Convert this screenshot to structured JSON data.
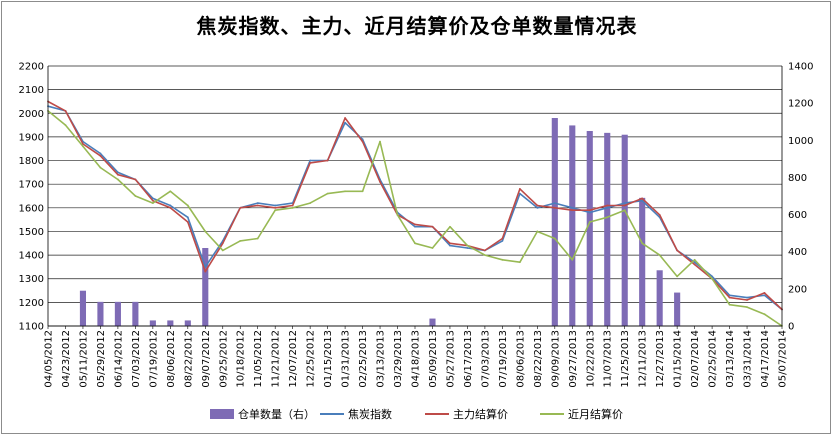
{
  "chart_data": {
    "type": "line",
    "title": "焦炭指数、主力、近月结算价及仓单数量情况表",
    "xlabel": "",
    "ylabel": "",
    "y_left": {
      "min": 1100,
      "max": 2200,
      "step": 100
    },
    "y_right": {
      "min": 0,
      "max": 1400,
      "step": 200
    },
    "grid": true,
    "legend_position": "bottom",
    "x_tick_labels": [
      "04/05/2012",
      "04/23/2012",
      "05/11/2012",
      "05/29/2012",
      "06/14/2012",
      "07/03/2012",
      "07/19/2012",
      "08/06/2012",
      "08/22/2012",
      "09/07/2012",
      "09/25/2012",
      "10/18/2012",
      "11/05/2012",
      "11/21/2012",
      "12/07/2012",
      "12/25/2012",
      "01/15/2013",
      "01/31/2013",
      "02/25/2013",
      "03/13/2013",
      "03/29/2013",
      "04/18/2013",
      "05/09/2013",
      "05/27/2013",
      "06/17/2013",
      "07/03/2013",
      "07/19/2013",
      "08/06/2013",
      "08/22/2013",
      "09/09/2013",
      "09/27/2013",
      "10/22/2013",
      "11/07/2013",
      "11/25/2013",
      "12/11/2013",
      "12/27/2013",
      "01/15/2014",
      "02/07/2014",
      "02/25/2014",
      "03/13/2014",
      "03/31/2014",
      "04/17/2014",
      "05/07/2014"
    ],
    "series": [
      {
        "name": "焦炭指数",
        "axis": "left",
        "color": "#4a7ebb",
        "values": [
          2030,
          2010,
          1880,
          1830,
          1750,
          1720,
          1640,
          1610,
          1560,
          1350,
          1460,
          1600,
          1620,
          1610,
          1620,
          1800,
          1800,
          1960,
          1890,
          1720,
          1580,
          1520,
          1520,
          1440,
          1430,
          1420,
          1460,
          1660,
          1600,
          1620,
          1600,
          1580,
          1600,
          1620,
          1630,
          1560,
          1420,
          1370,
          1310,
          1230,
          1220,
          1230,
          1170
        ]
      },
      {
        "name": "主力结算价",
        "axis": "left",
        "color": "#be4b48",
        "values": [
          2050,
          2010,
          1870,
          1820,
          1740,
          1720,
          1630,
          1600,
          1540,
          1330,
          1450,
          1600,
          1610,
          1600,
          1610,
          1790,
          1800,
          1980,
          1880,
          1710,
          1570,
          1530,
          1520,
          1450,
          1440,
          1420,
          1470,
          1680,
          1610,
          1600,
          1590,
          1590,
          1610,
          1610,
          1640,
          1570,
          1420,
          1360,
          1300,
          1220,
          1210,
          1240,
          1170
        ]
      },
      {
        "name": "近月结算价",
        "axis": "left",
        "color": "#98b954",
        "values": [
          2010,
          1950,
          1860,
          1770,
          1720,
          1650,
          1620,
          1670,
          1610,
          1500,
          1420,
          1460,
          1470,
          1590,
          1600,
          1620,
          1660,
          1670,
          1670,
          1880,
          1570,
          1450,
          1430,
          1520,
          1440,
          1400,
          1380,
          1370,
          1500,
          1470,
          1380,
          1540,
          1560,
          1590,
          1450,
          1400,
          1310,
          1380,
          1300,
          1190,
          1180,
          1150,
          1100
        ]
      },
      {
        "name": "仓单数量（右）",
        "axis": "right",
        "color": "#7e6bb5",
        "type": "bar",
        "values": [
          0,
          0,
          190,
          130,
          130,
          130,
          30,
          30,
          30,
          420,
          0,
          0,
          0,
          0,
          0,
          0,
          0,
          0,
          0,
          0,
          0,
          0,
          40,
          0,
          0,
          0,
          0,
          0,
          0,
          1120,
          1080,
          1050,
          1040,
          1030,
          690,
          300,
          180,
          0,
          0,
          0,
          0,
          0,
          0
        ]
      }
    ]
  }
}
